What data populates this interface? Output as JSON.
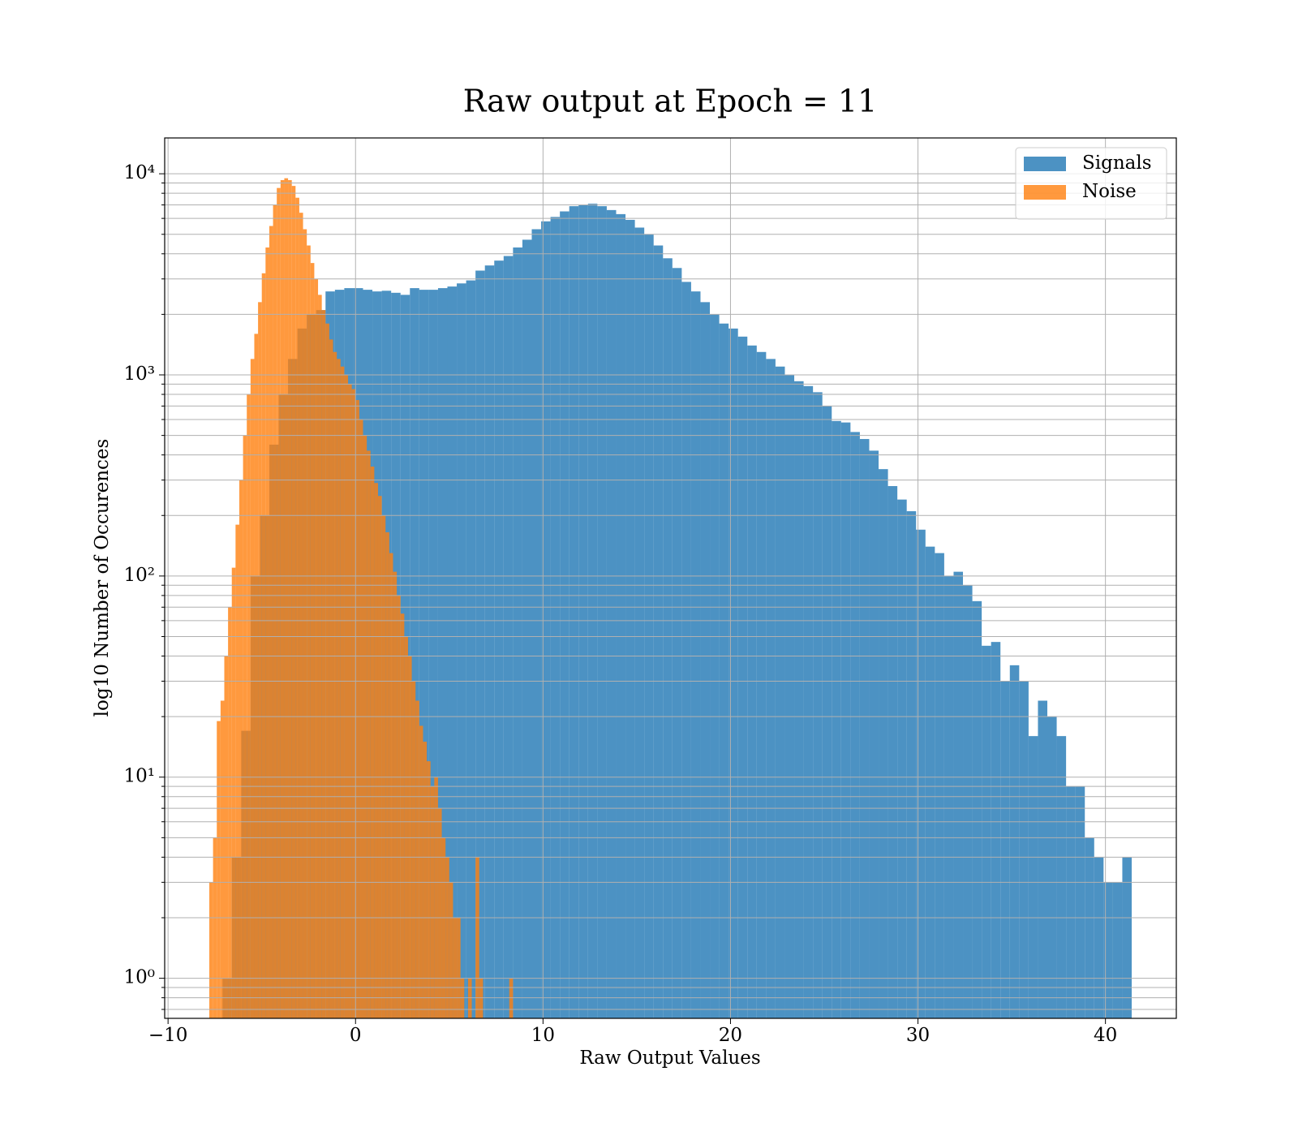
{
  "chart_data": {
    "type": "histogram",
    "title": "Raw output at Epoch = 11",
    "x_label": "Raw Output Values",
    "y_label": "log10 Number of Occurences",
    "y_log": true,
    "grid": true,
    "legend": "upper right",
    "xlim": [
      -10.18,
      43.78
    ],
    "xticks": [
      {
        "value": -10,
        "label": "−10"
      },
      0,
      10,
      20,
      30,
      40
    ],
    "ylim": [
      0.632,
      15070
    ],
    "yticks": [
      {
        "value": 1,
        "label": "10⁰"
      },
      {
        "value": 10,
        "label": "10¹"
      },
      {
        "value": 100,
        "label": "10²"
      },
      {
        "value": 1000,
        "label": "10³"
      },
      {
        "value": 10000,
        "label": "10⁴"
      }
    ],
    "yminorticks": [
      0.7,
      0.8,
      0.9,
      2,
      3,
      4,
      5,
      6,
      7,
      8,
      9,
      20,
      30,
      40,
      50,
      60,
      70,
      80,
      90,
      200,
      300,
      400,
      500,
      600,
      700,
      800,
      900,
      2000,
      3000,
      4000,
      5000,
      6000,
      7000,
      8000,
      9000
    ],
    "series": [
      {
        "name": "Signals",
        "color": "#1f77b4",
        "bins": [
          -7.1,
          -6.6,
          -6.1,
          -5.6,
          -5.1,
          -4.6,
          -4.1,
          -3.6,
          -3.1,
          -2.6,
          -2.1,
          -1.6,
          -1.1,
          -0.6,
          -0.1,
          0.4,
          0.9,
          1.4,
          1.9,
          2.4,
          2.9,
          3.4,
          3.9,
          4.4,
          4.9,
          5.4,
          5.9,
          6.4,
          6.9,
          7.4,
          7.9,
          8.4,
          8.9,
          9.4,
          9.9,
          10.4,
          10.9,
          11.4,
          11.9,
          12.4,
          12.9,
          13.4,
          13.9,
          14.4,
          14.9,
          15.4,
          15.9,
          16.4,
          16.9,
          17.4,
          17.9,
          18.4,
          18.9,
          19.4,
          19.9,
          20.4,
          20.9,
          21.4,
          21.9,
          22.4,
          22.9,
          23.4,
          23.9,
          24.4,
          24.9,
          25.4,
          25.9,
          26.4,
          26.9,
          27.4,
          27.9,
          28.4,
          28.9,
          29.4,
          29.9,
          30.4,
          30.9,
          31.4,
          31.9,
          32.4,
          32.9,
          33.4,
          33.9,
          34.4,
          34.9,
          35.4,
          35.9,
          36.4,
          36.9,
          37.4,
          37.9,
          38.4,
          38.9,
          39.4,
          39.9,
          40.4,
          40.9,
          41.4
        ],
        "values": [
          1,
          4,
          17,
          100,
          200,
          450,
          800,
          1200,
          1700,
          2000,
          2100,
          2600,
          2650,
          2700,
          2700,
          2650,
          2600,
          2620,
          2560,
          2500,
          2700,
          2650,
          2650,
          2700,
          2750,
          2850,
          2950,
          3300,
          3500,
          3700,
          3900,
          4300,
          4700,
          5300,
          5800,
          6100,
          6500,
          6900,
          7000,
          7100,
          6900,
          6600,
          6300,
          5900,
          5400,
          5000,
          4400,
          3800,
          3400,
          2900,
          2600,
          2300,
          2000,
          1800,
          1700,
          1550,
          1400,
          1300,
          1200,
          1100,
          1000,
          930,
          880,
          820,
          700,
          590,
          580,
          520,
          480,
          420,
          340,
          280,
          240,
          210,
          170,
          140,
          130,
          100,
          105,
          90,
          75,
          45,
          47,
          30,
          36,
          30,
          16,
          24,
          20,
          16,
          9,
          9,
          5,
          4,
          3,
          3,
          4
        ]
      },
      {
        "name": "Noise",
        "color": "#ff7f0e",
        "bins": [
          -7.8,
          -7.6,
          -7.4,
          -7.2,
          -7.0,
          -6.8,
          -6.6,
          -6.4,
          -6.2,
          -6.0,
          -5.8,
          -5.6,
          -5.4,
          -5.2,
          -5.0,
          -4.8,
          -4.6,
          -4.4,
          -4.2,
          -4.0,
          -3.8,
          -3.6,
          -3.4,
          -3.2,
          -3.0,
          -2.8,
          -2.6,
          -2.4,
          -2.2,
          -2.0,
          -1.8,
          -1.6,
          -1.4,
          -1.2,
          -1.0,
          -0.8,
          -0.6,
          -0.4,
          -0.2,
          0.0,
          0.2,
          0.4,
          0.6,
          0.8,
          1.0,
          1.2,
          1.4,
          1.6,
          1.8,
          2.0,
          2.2,
          2.4,
          2.6,
          2.8,
          3.0,
          3.2,
          3.4,
          3.6,
          3.8,
          4.0,
          4.2,
          4.4,
          4.6,
          4.8,
          5.0,
          5.2,
          5.4,
          5.6,
          5.8,
          6.0,
          6.2,
          6.4,
          6.6,
          6.8,
          7.0,
          7.2,
          7.4,
          7.6,
          7.8,
          8.0,
          8.2,
          8.4
        ],
        "values": [
          3,
          5,
          19,
          24,
          40,
          70,
          110,
          180,
          300,
          500,
          800,
          1200,
          1600,
          2300,
          3200,
          4300,
          5500,
          7000,
          8500,
          9300,
          9500,
          9300,
          8700,
          7600,
          6400,
          5300,
          4400,
          3600,
          3000,
          2500,
          2100,
          1800,
          1500,
          1300,
          1200,
          1100,
          1000,
          900,
          850,
          750,
          600,
          500,
          420,
          350,
          290,
          250,
          200,
          165,
          130,
          105,
          80,
          65,
          50,
          40,
          30,
          24,
          18,
          15,
          12,
          9,
          10,
          7,
          5,
          4,
          3,
          2,
          2,
          1,
          0,
          1,
          0,
          4,
          1,
          0,
          0,
          0,
          0,
          0,
          0,
          0,
          1
        ]
      }
    ]
  }
}
